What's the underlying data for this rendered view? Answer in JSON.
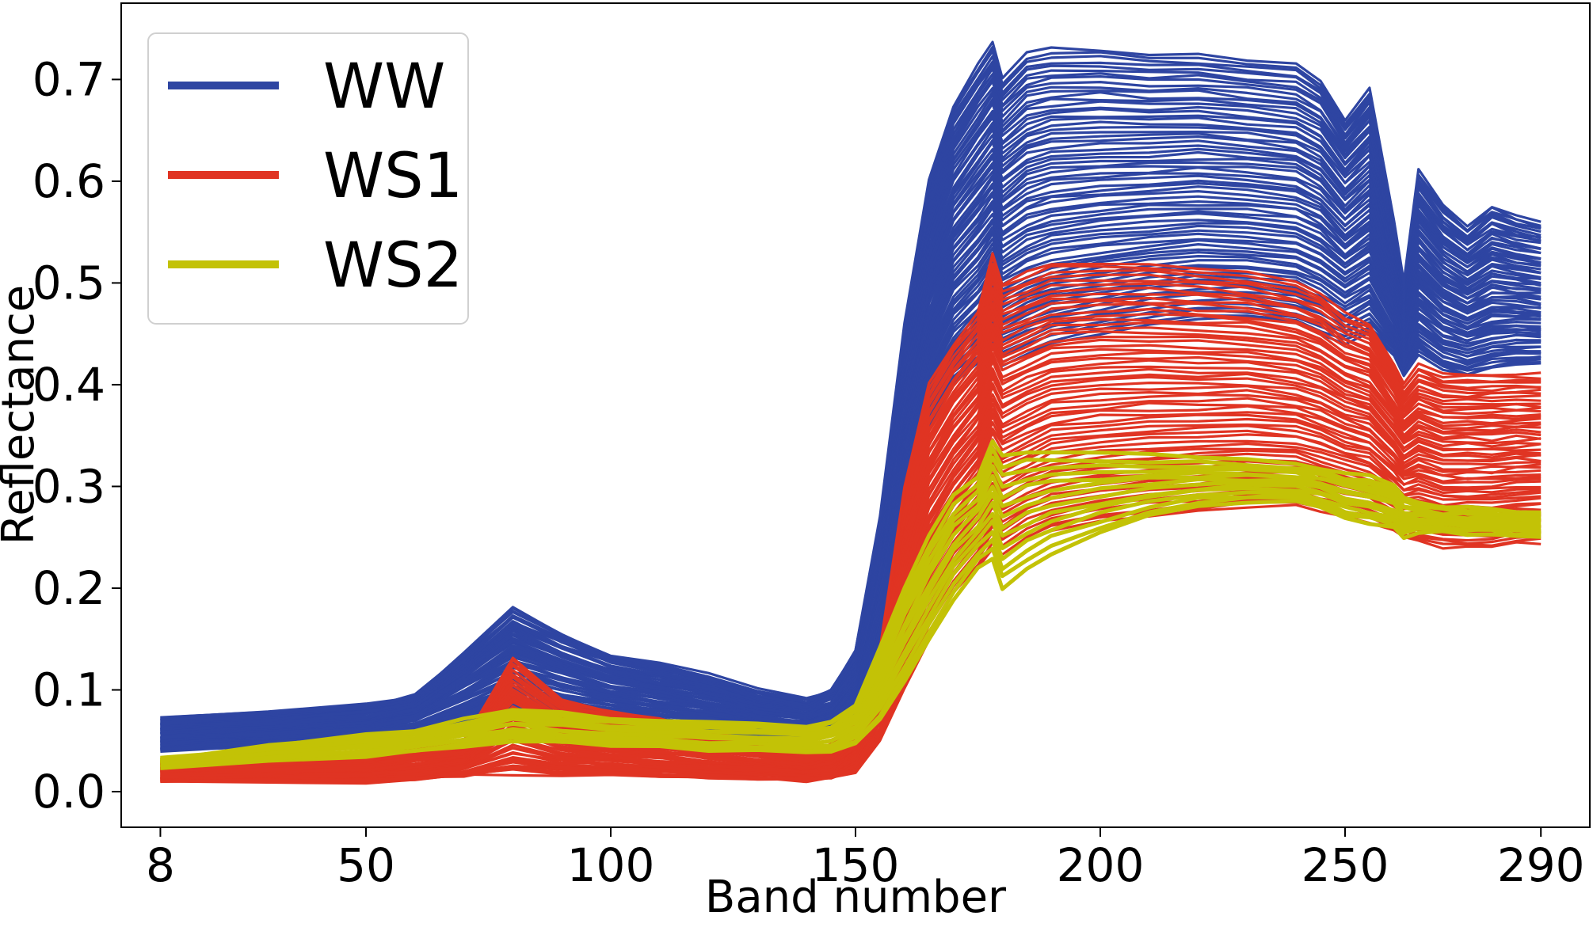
{
  "chart_data": {
    "type": "line",
    "title": "",
    "xlabel": "Band number",
    "ylabel": "Reflectance",
    "xlim": [
      0,
      300
    ],
    "ylim": [
      -0.035,
      0.775
    ],
    "xticks": [
      8,
      50,
      100,
      150,
      200,
      250,
      290
    ],
    "xtick_labels": [
      "8",
      "50",
      "100",
      "150",
      "200",
      "250",
      "290"
    ],
    "yticks": [
      0.0,
      0.1,
      0.2,
      0.3,
      0.4,
      0.5,
      0.6,
      0.7
    ],
    "ytick_labels": [
      "0.0",
      "0.1",
      "0.2",
      "0.3",
      "0.4",
      "0.5",
      "0.6",
      "0.7"
    ],
    "grid": false,
    "legend_position": "top-left",
    "x": [
      8,
      30,
      50,
      60,
      70,
      80,
      90,
      100,
      110,
      120,
      130,
      140,
      145,
      150,
      155,
      160,
      165,
      170,
      175,
      178,
      180,
      185,
      190,
      200,
      210,
      220,
      230,
      240,
      245,
      250,
      255,
      260,
      262,
      265,
      270,
      275,
      280,
      285,
      290
    ],
    "series": [
      {
        "name": "WW",
        "color": "#2e45a2",
        "upper": [
          0.072,
          0.078,
          0.085,
          0.095,
          0.135,
          0.18,
          0.155,
          0.135,
          0.125,
          0.115,
          0.1,
          0.09,
          0.1,
          0.14,
          0.27,
          0.46,
          0.6,
          0.675,
          0.715,
          0.735,
          0.7,
          0.725,
          0.73,
          0.73,
          0.725,
          0.725,
          0.72,
          0.715,
          0.7,
          0.66,
          0.69,
          0.56,
          0.5,
          0.61,
          0.575,
          0.555,
          0.575,
          0.565,
          0.56
        ],
        "lower": [
          0.04,
          0.045,
          0.05,
          0.055,
          0.065,
          0.075,
          0.07,
          0.065,
          0.06,
          0.055,
          0.052,
          0.05,
          0.055,
          0.075,
          0.15,
          0.28,
          0.36,
          0.4,
          0.42,
          0.44,
          0.42,
          0.43,
          0.44,
          0.45,
          0.46,
          0.465,
          0.465,
          0.46,
          0.45,
          0.44,
          0.45,
          0.43,
          0.41,
          0.43,
          0.415,
          0.41,
          0.415,
          0.42,
          0.42
        ]
      },
      {
        "name": "WS1",
        "color": "#e03423",
        "upper": [
          0.03,
          0.032,
          0.035,
          0.04,
          0.05,
          0.13,
          0.09,
          0.08,
          0.07,
          0.06,
          0.05,
          0.04,
          0.045,
          0.07,
          0.14,
          0.3,
          0.4,
          0.44,
          0.47,
          0.53,
          0.5,
          0.51,
          0.52,
          0.52,
          0.52,
          0.515,
          0.51,
          0.5,
          0.49,
          0.47,
          0.46,
          0.42,
          0.4,
          0.42,
          0.41,
          0.41,
          0.41,
          0.41,
          0.41
        ],
        "lower": [
          0.01,
          0.01,
          0.01,
          0.012,
          0.015,
          0.018,
          0.017,
          0.015,
          0.014,
          0.013,
          0.012,
          0.011,
          0.012,
          0.02,
          0.05,
          0.1,
          0.15,
          0.19,
          0.22,
          0.24,
          0.23,
          0.245,
          0.255,
          0.265,
          0.27,
          0.275,
          0.28,
          0.28,
          0.275,
          0.27,
          0.265,
          0.255,
          0.25,
          0.245,
          0.24,
          0.24,
          0.24,
          0.245,
          0.245
        ]
      },
      {
        "name": "WS2",
        "color": "#c3c206",
        "upper": [
          0.033,
          0.045,
          0.055,
          0.06,
          0.07,
          0.082,
          0.077,
          0.072,
          0.07,
          0.068,
          0.066,
          0.065,
          0.068,
          0.085,
          0.14,
          0.2,
          0.25,
          0.29,
          0.31,
          0.345,
          0.33,
          0.335,
          0.335,
          0.332,
          0.33,
          0.328,
          0.326,
          0.322,
          0.318,
          0.312,
          0.31,
          0.3,
          0.29,
          0.285,
          0.28,
          0.278,
          0.278,
          0.276,
          0.275
        ],
        "lower": [
          0.025,
          0.03,
          0.035,
          0.04,
          0.045,
          0.05,
          0.048,
          0.045,
          0.043,
          0.041,
          0.04,
          0.038,
          0.04,
          0.048,
          0.07,
          0.11,
          0.15,
          0.19,
          0.22,
          0.23,
          0.2,
          0.22,
          0.235,
          0.255,
          0.27,
          0.28,
          0.285,
          0.285,
          0.28,
          0.27,
          0.265,
          0.26,
          0.25,
          0.255,
          0.255,
          0.252,
          0.252,
          0.25,
          0.25
        ]
      }
    ]
  }
}
